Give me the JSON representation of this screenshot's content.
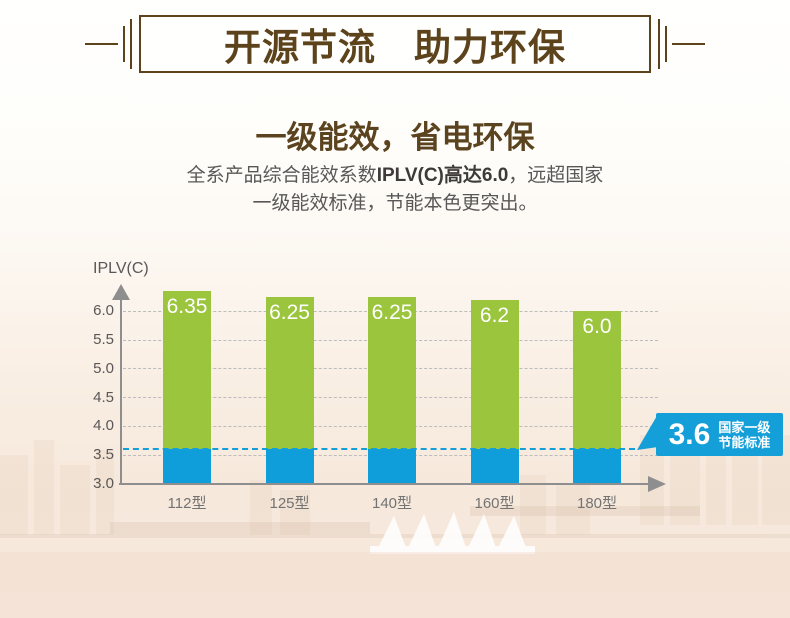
{
  "header": {
    "title": "开源节流　助力环保"
  },
  "intro": {
    "subtitle": "一级能效，省电环保",
    "line1_pre": "全系产品综合能效系数",
    "line1_bold": "IPLV(C)高达6.0",
    "line1_post": "，远超国家",
    "line2": "一级能效标准，节能本色更突出。"
  },
  "chart_data": {
    "type": "bar",
    "title": "",
    "xlabel": "",
    "ylabel": "IPLV(C)",
    "categories": [
      "112型",
      "125型",
      "140型",
      "160型",
      "180型"
    ],
    "values": [
      6.35,
      6.25,
      6.25,
      6.2,
      6.0
    ],
    "value_labels": [
      "6.35",
      "6.25",
      "6.25",
      "6.2",
      "6.0"
    ],
    "ylim": [
      3.0,
      6.5
    ],
    "yticks": [
      6.0,
      5.5,
      5.0,
      4.5,
      4.0,
      3.5,
      3.0
    ],
    "ytick_labels": [
      "6.0",
      "5.5",
      "5.0",
      "4.5",
      "4.0",
      "3.5",
      "3.0"
    ],
    "grid": "horizontal-dashed",
    "legend": "none",
    "threshold": {
      "value": 3.6,
      "label": "3.6",
      "line1": "国家一级",
      "line2": "节能标准"
    },
    "colors": {
      "bar_above_threshold": "#9ac53d",
      "bar_below_threshold": "#0f9ed9",
      "threshold_line": "#149fd9",
      "axis": "#8e8e8e",
      "grid": "#bcbcbc"
    }
  },
  "colors": {
    "title_brown": "#5c431b",
    "subtitle_brown": "#5a431e",
    "text_gray": "#595757",
    "text_dark": "#3e3a39"
  }
}
